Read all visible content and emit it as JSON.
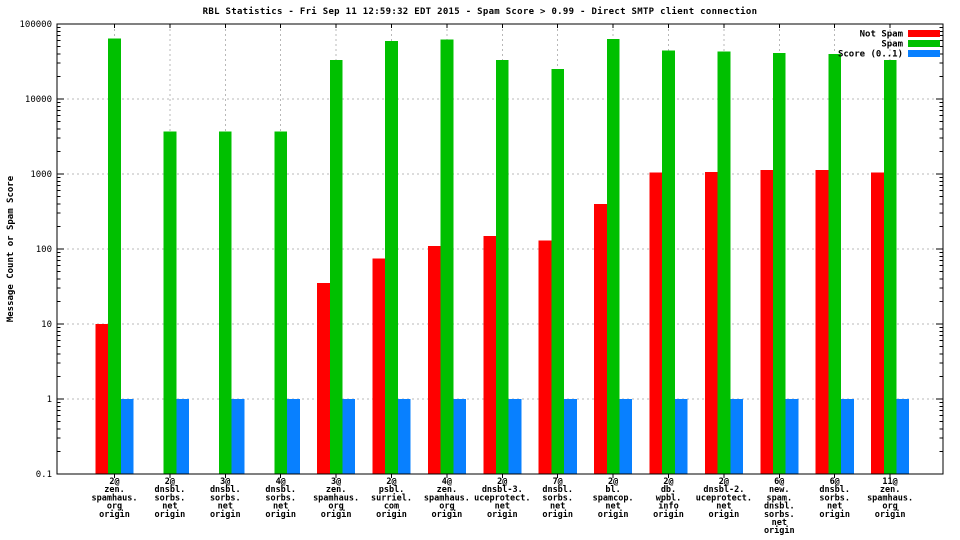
{
  "chart_data": {
    "type": "bar",
    "title": "RBL Statistics - Fri Sep 11 12:59:32 EDT 2015 - Spam Score > 0.99 - Direct SMTP client connection",
    "ylabel": "Message Count or Spam Score",
    "yscale": "log",
    "ylim": [
      0.1,
      100000
    ],
    "ytick_labels": [
      "0.1",
      "1",
      "10",
      "100",
      "1000",
      "10000",
      "100000"
    ],
    "grid": true,
    "legend_position": "top-right-inside",
    "background_color": "#ffffff",
    "grid_color": "#b8b8b8",
    "border_color": "#000000",
    "categories": [
      [
        "2@",
        "zen.",
        "spamhaus.",
        "org",
        "origin"
      ],
      [
        "2@",
        "dnsbl.",
        "sorbs.",
        "net",
        "origin"
      ],
      [
        "3@",
        "dnsbl.",
        "sorbs.",
        "net",
        "origin"
      ],
      [
        "4@",
        "dnsbl.",
        "sorbs.",
        "net",
        "origin"
      ],
      [
        "3@",
        "zen.",
        "spamhaus.",
        "org",
        "origin"
      ],
      [
        "2@",
        "psbl.",
        "surriel.",
        "com",
        "origin"
      ],
      [
        "4@",
        "zen.",
        "spamhaus.",
        "org",
        "origin"
      ],
      [
        "2@",
        "dnsbl-3.",
        "uceprotect.",
        "net",
        "origin"
      ],
      [
        "7@",
        "dnsbl.",
        "sorbs.",
        "net",
        "origin"
      ],
      [
        "2@",
        "bl.",
        "spamcop.",
        "net",
        "origin"
      ],
      [
        "2@",
        "db.",
        "wpbl.",
        "info",
        "origin"
      ],
      [
        "2@",
        "dnsbl-2.",
        "uceprotect.",
        "net",
        "origin"
      ],
      [
        "6@",
        "new.",
        "spam.",
        "dnsbl.",
        "sorbs.",
        "net",
        "origin"
      ],
      [
        "6@",
        "dnsbl.",
        "sorbs.",
        "net",
        "origin"
      ],
      [
        "11@",
        "zen.",
        "spamhaus.",
        "org",
        "origin"
      ]
    ],
    "series": [
      {
        "name": "Not Spam",
        "color": "#ff0000",
        "values": [
          10,
          0,
          0,
          0,
          35,
          75,
          110,
          150,
          130,
          400,
          1050,
          1070,
          1130,
          1130,
          1040
        ]
      },
      {
        "name": "Spam",
        "color": "#00c000",
        "values": [
          64000,
          3700,
          3700,
          3700,
          33000,
          59000,
          62000,
          33000,
          25000,
          63000,
          44000,
          43000,
          41000,
          40000,
          33000
        ]
      },
      {
        "name": "Score (0..1)",
        "color": "#0880ff",
        "values": [
          1,
          1,
          1,
          1,
          1,
          1,
          1,
          1,
          1,
          1,
          1,
          1,
          1,
          1,
          1
        ]
      }
    ]
  }
}
